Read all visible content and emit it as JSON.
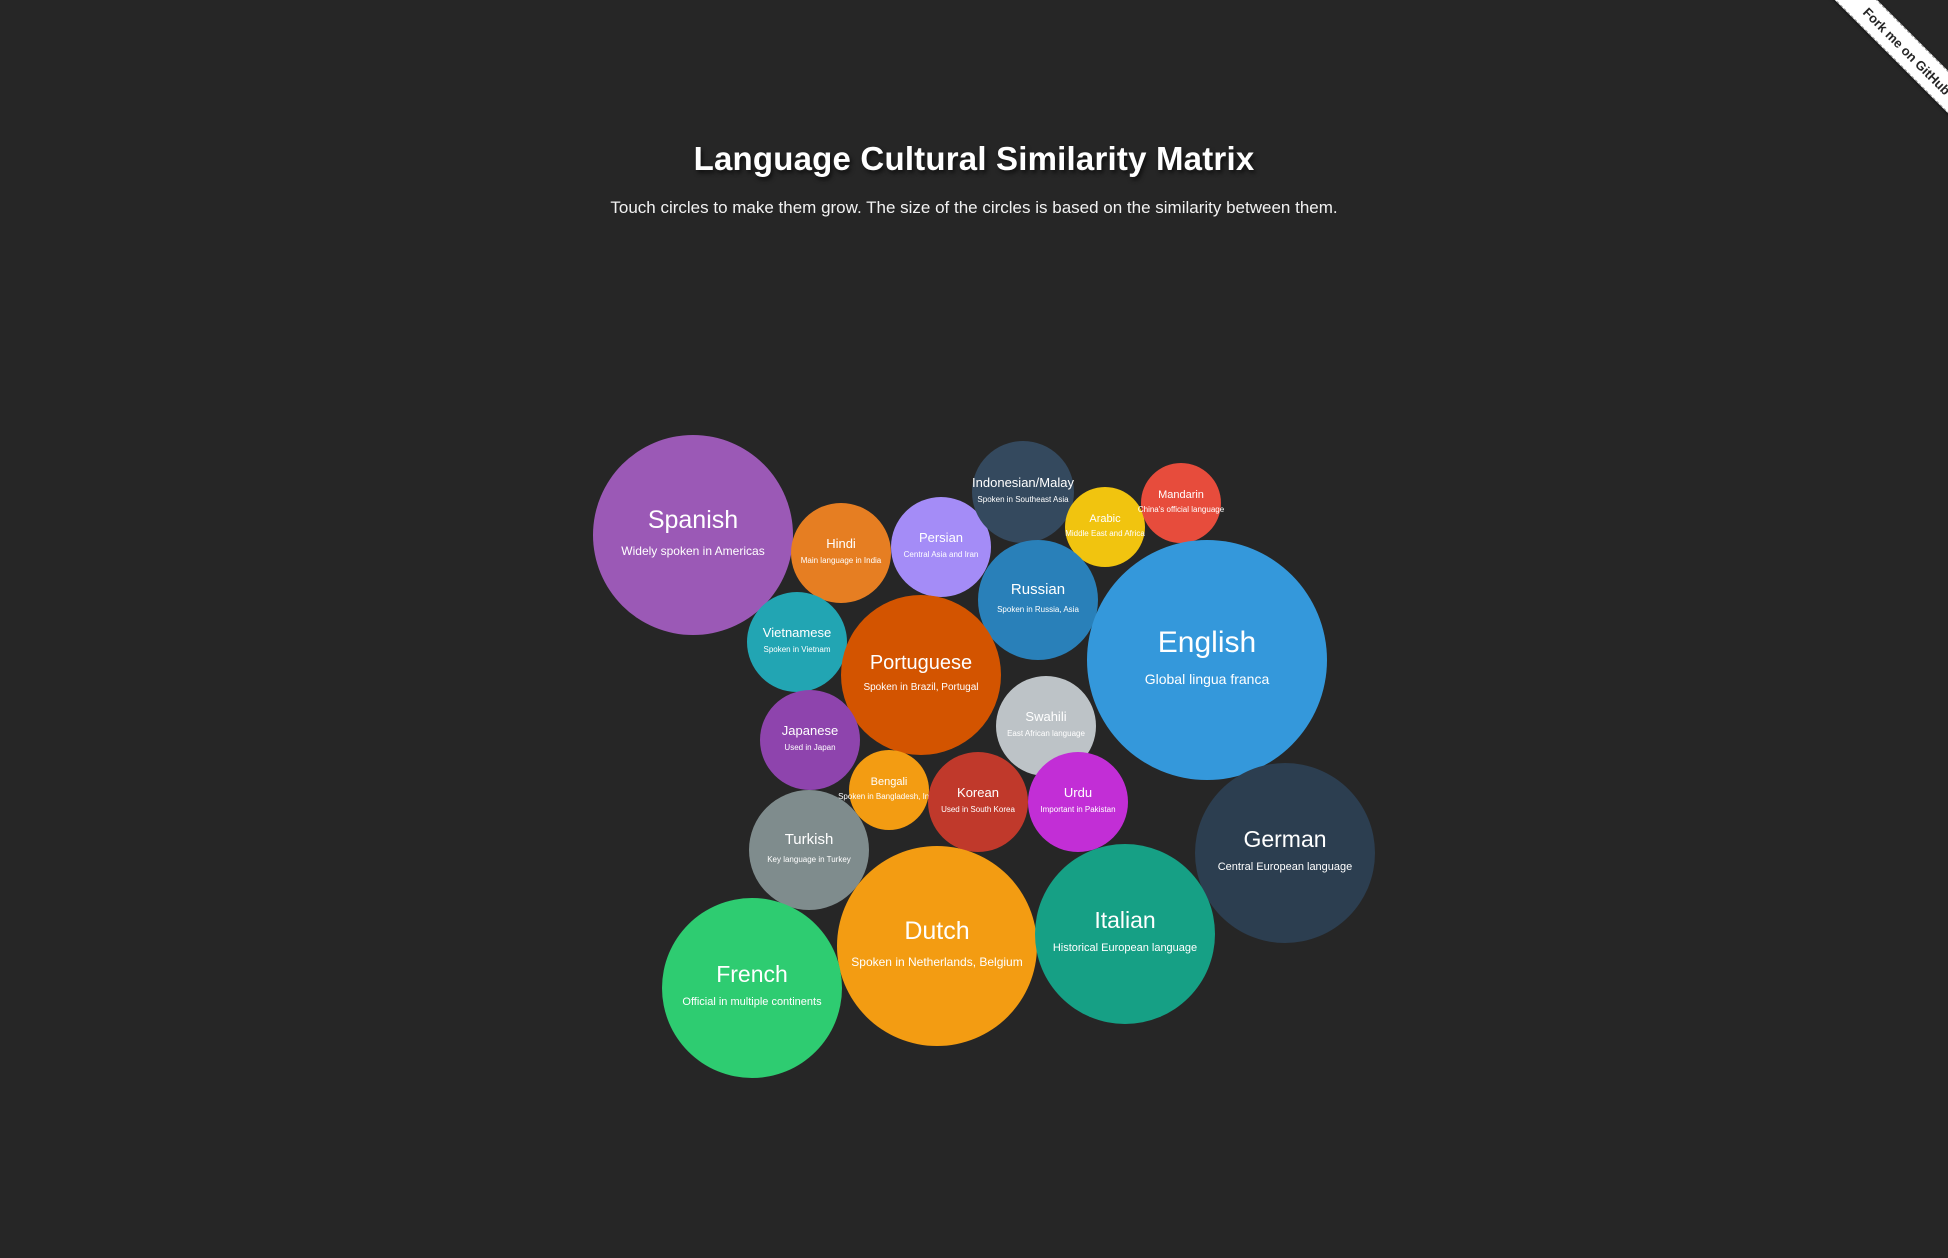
{
  "header": {
    "title": "Language Cultural Similarity Matrix",
    "subtitle": "Touch circles to make them grow. The size of the circles is based on the similarity between them."
  },
  "ribbon": {
    "label": "Fork me on GitHub"
  },
  "languages": [
    {
      "name": "Spanish",
      "desc": "Widely spoken in Americas",
      "color": "#9b59b6"
    },
    {
      "name": "Hindi",
      "desc": "Main language in India",
      "color": "#e67e22"
    },
    {
      "name": "Persian",
      "desc": "Central Asia and Iran",
      "color": "#a48cf7"
    },
    {
      "name": "Indonesian/Malay",
      "desc": "Spoken in Southeast Asia",
      "color": "#34495e"
    },
    {
      "name": "Arabic",
      "desc": "Middle East and Africa",
      "color": "#f1c40f"
    },
    {
      "name": "Mandarin",
      "desc": "China's official language",
      "color": "#e74c3c"
    },
    {
      "name": "Russian",
      "desc": "Spoken in Russia, Asia",
      "color": "#2980b9"
    },
    {
      "name": "English",
      "desc": "Global lingua franca",
      "color": "#3498db"
    },
    {
      "name": "Vietnamese",
      "desc": "Spoken in Vietnam",
      "color": "#22a5b3"
    },
    {
      "name": "Portuguese",
      "desc": "Spoken in Brazil, Portugal",
      "color": "#d35400"
    },
    {
      "name": "Swahili",
      "desc": "East African language",
      "color": "#bdc3c7"
    },
    {
      "name": "Japanese",
      "desc": "Used in Japan",
      "color": "#8e44ad"
    },
    {
      "name": "Bengali",
      "desc": "Spoken in Bangladesh, India",
      "color": "#f39c12"
    },
    {
      "name": "Korean",
      "desc": "Used in South Korea",
      "color": "#c0392b"
    },
    {
      "name": "Urdu",
      "desc": "Important in Pakistan",
      "color": "#c22ed6"
    },
    {
      "name": "German",
      "desc": "Central European language",
      "color": "#2c3e50"
    },
    {
      "name": "Turkish",
      "desc": "Key language in Turkey",
      "color": "#7f8c8d"
    },
    {
      "name": "Dutch",
      "desc": "Spoken in Netherlands, Belgium",
      "color": "#f39c12"
    },
    {
      "name": "Italian",
      "desc": "Historical European language",
      "color": "#16a085"
    },
    {
      "name": "French",
      "desc": "Official in multiple continents",
      "color": "#2ecc71"
    }
  ]
}
